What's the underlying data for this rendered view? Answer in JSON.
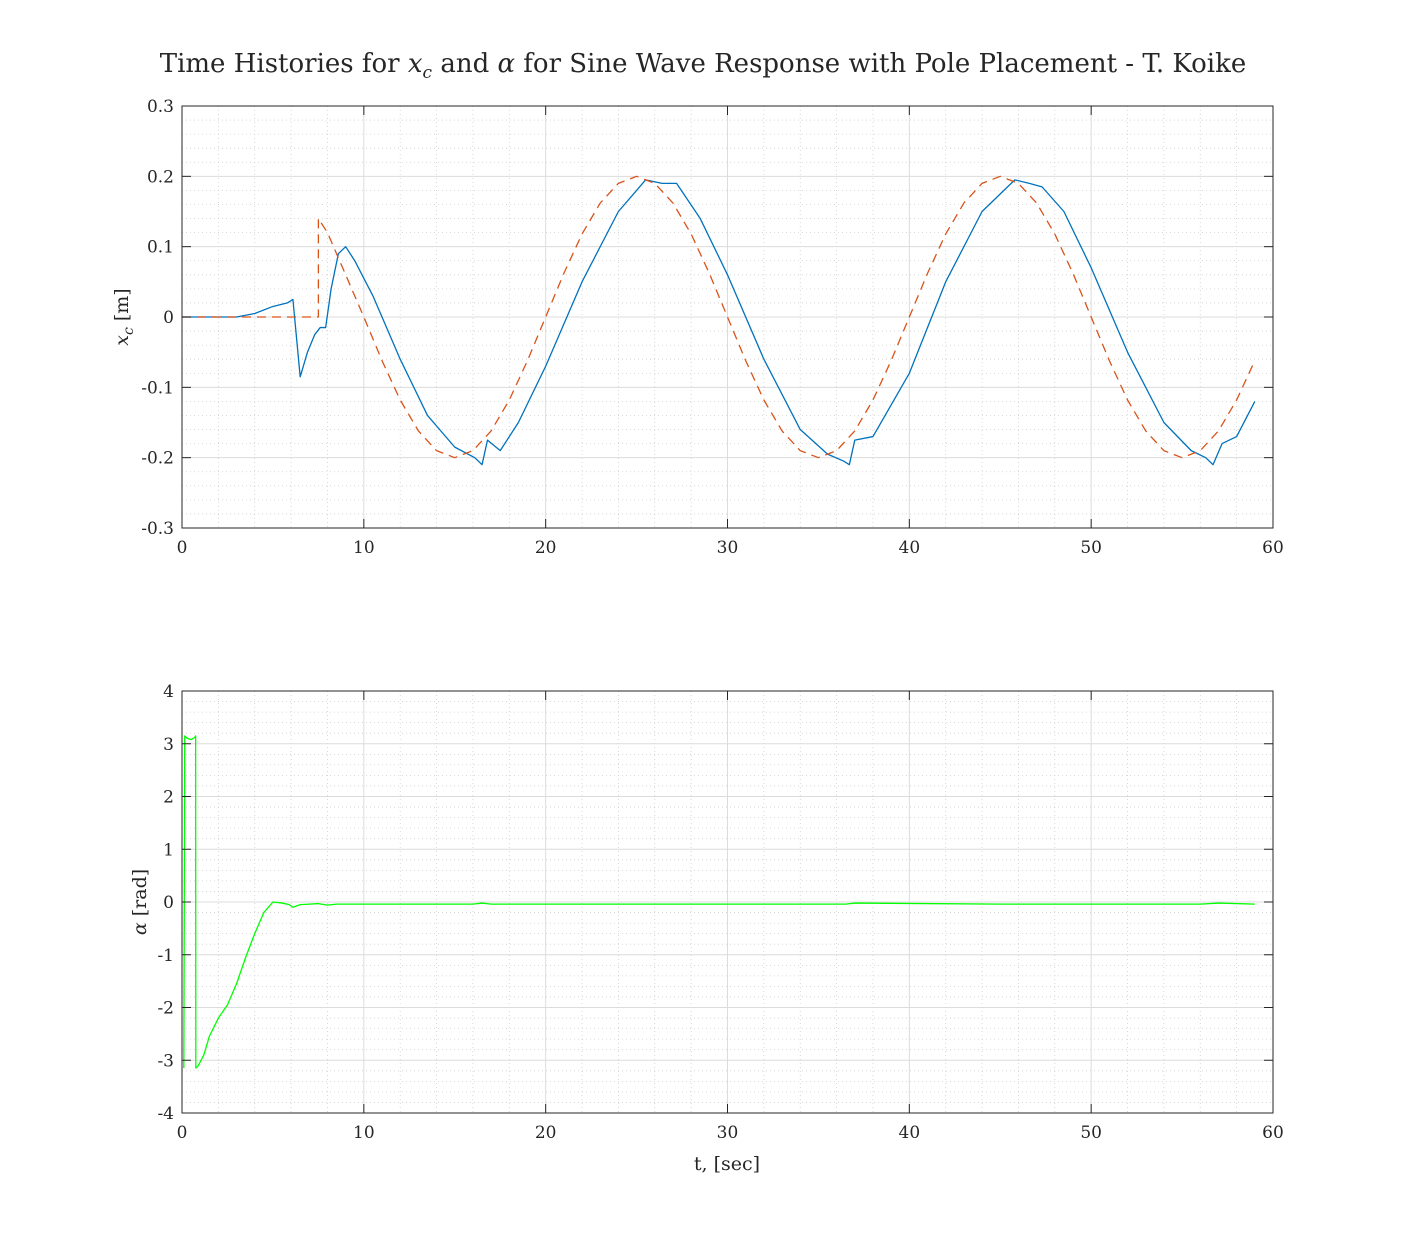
{
  "figure": {
    "title_parts": {
      "p1": "Time Histories for ",
      "xc_base": "x",
      "xc_sub": "c",
      "p2": " and ",
      "alpha": "α",
      "p3": " for Sine Wave Response with Pole Placement - T. Koike"
    }
  },
  "chart_data": [
    {
      "type": "line",
      "ylabel_parts": {
        "base": "x",
        "sub": "c",
        "unit": " [m]"
      },
      "xlabel": "",
      "xlim": [
        0,
        60
      ],
      "ylim": [
        -0.3,
        0.3
      ],
      "xticks": [
        0,
        10,
        20,
        30,
        40,
        50,
        60
      ],
      "yticks": [
        -0.3,
        -0.2,
        -0.1,
        0,
        0.1,
        0.2,
        0.3
      ],
      "xtick_labels": [
        "0",
        "10",
        "20",
        "30",
        "40",
        "50",
        "60"
      ],
      "ytick_labels": [
        "-0.3",
        "-0.2",
        "-0.1",
        "0",
        "0.1",
        "0.2",
        "0.3"
      ],
      "grid": true,
      "minor_grid": true,
      "series": [
        {
          "style": "solid",
          "color": "#0072bd",
          "x": [
            0,
            2,
            3,
            4,
            5,
            5.8,
            6.1,
            6.5,
            6.9,
            7.3,
            7.6,
            7.9,
            8.2,
            8.6,
            9.0,
            9.5,
            10.5,
            12,
            13.5,
            15,
            16.1,
            16.5,
            16.8,
            17.5,
            18.5,
            20,
            22,
            24,
            25.5,
            26.4,
            27.2,
            28.5,
            30,
            32,
            34,
            35.5,
            36.4,
            36.7,
            37.0,
            38,
            40,
            42,
            44,
            45.8,
            46.6,
            47.3,
            48.5,
            50,
            52,
            54,
            55.5,
            56.3,
            56.7,
            57.2,
            58,
            59
          ],
          "y": [
            0,
            0,
            0,
            0.005,
            0.015,
            0.02,
            0.025,
            -0.085,
            -0.05,
            -0.025,
            -0.015,
            -0.015,
            0.04,
            0.09,
            0.1,
            0.08,
            0.03,
            -0.06,
            -0.14,
            -0.185,
            -0.2,
            -0.21,
            -0.175,
            -0.19,
            -0.15,
            -0.07,
            0.05,
            0.15,
            0.195,
            0.19,
            0.19,
            0.14,
            0.06,
            -0.06,
            -0.16,
            -0.195,
            -0.205,
            -0.21,
            -0.175,
            -0.17,
            -0.08,
            0.05,
            0.15,
            0.195,
            0.19,
            0.185,
            0.15,
            0.07,
            -0.05,
            -0.15,
            -0.19,
            -0.2,
            -0.21,
            -0.18,
            -0.17,
            -0.12
          ]
        },
        {
          "style": "dashed",
          "color": "#d95319",
          "x": [
            0,
            7.5,
            7.5,
            8,
            9,
            10,
            11,
            12,
            13,
            14,
            15,
            16,
            17,
            18,
            19,
            20,
            21,
            22,
            23,
            24,
            25,
            26,
            27,
            28,
            29,
            30,
            31,
            32,
            33,
            34,
            35,
            36,
            37,
            38,
            39,
            40,
            41,
            42,
            43,
            44,
            45,
            46,
            47,
            48,
            49,
            50,
            51,
            52,
            53,
            54,
            55,
            56,
            57,
            58,
            59
          ],
          "y": [
            0,
            0,
            0.14,
            0.12,
            0.06,
            0.0,
            -0.062,
            -0.118,
            -0.162,
            -0.19,
            -0.2,
            -0.19,
            -0.162,
            -0.118,
            -0.062,
            0.0,
            0.062,
            0.118,
            0.162,
            0.19,
            0.2,
            0.19,
            0.162,
            0.118,
            0.062,
            0.0,
            -0.062,
            -0.118,
            -0.162,
            -0.19,
            -0.2,
            -0.19,
            -0.162,
            -0.118,
            -0.062,
            0.0,
            0.062,
            0.118,
            0.162,
            0.19,
            0.2,
            0.19,
            0.162,
            0.118,
            0.062,
            0.0,
            -0.062,
            -0.118,
            -0.162,
            -0.19,
            -0.2,
            -0.19,
            -0.162,
            -0.118,
            -0.062
          ]
        }
      ]
    },
    {
      "type": "line",
      "ylabel_parts": {
        "base": "α",
        "sub": "",
        "unit": " [rad]"
      },
      "xlabel": "t, [sec]",
      "xlim": [
        0,
        60
      ],
      "ylim": [
        -4,
        4
      ],
      "xticks": [
        0,
        10,
        20,
        30,
        40,
        50,
        60
      ],
      "yticks": [
        -4,
        -3,
        -2,
        -1,
        0,
        1,
        2,
        3,
        4
      ],
      "xtick_labels": [
        "0",
        "10",
        "20",
        "30",
        "40",
        "50",
        "60"
      ],
      "ytick_labels": [
        "-4",
        "-3",
        "-2",
        "-1",
        "0",
        "1",
        "2",
        "3",
        "4"
      ],
      "grid": true,
      "minor_grid": true,
      "series": [
        {
          "style": "solid",
          "color": "#00ff00",
          "x": [
            0.1,
            0.15,
            0.3,
            0.5,
            0.7,
            0.75,
            0.76,
            0.9,
            1.2,
            1.5,
            2.0,
            2.5,
            3.0,
            3.5,
            4.0,
            4.5,
            5.0,
            5.5,
            5.9,
            6.1,
            6.5,
            7.0,
            7.5,
            8.0,
            8.5,
            10,
            16,
            16.5,
            17,
            25,
            36.5,
            37,
            45,
            56,
            57,
            59
          ],
          "y": [
            -3.15,
            3.15,
            3.1,
            3.08,
            3.12,
            3.15,
            -3.15,
            -3.1,
            -2.9,
            -2.55,
            -2.2,
            -1.95,
            -1.55,
            -1.05,
            -0.6,
            -0.2,
            0.0,
            -0.02,
            -0.05,
            -0.1,
            -0.05,
            -0.04,
            -0.03,
            -0.06,
            -0.04,
            -0.04,
            -0.04,
            -0.02,
            -0.04,
            -0.04,
            -0.04,
            -0.02,
            -0.04,
            -0.04,
            -0.02,
            -0.04
          ]
        }
      ]
    }
  ]
}
